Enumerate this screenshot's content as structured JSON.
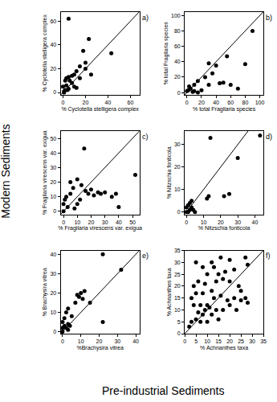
{
  "chart_data": {
    "type": "scatter",
    "x_label": "Pre-industrial Sediments",
    "y_label": "Modern Sediments",
    "marker": "circle",
    "color": "#000000",
    "panels": [
      {
        "label": "a)",
        "x_label": "% Cyclotella stelligera complex",
        "y_label": "% Cyclotella stelligera complex",
        "x": [
          5,
          23,
          18,
          43,
          20,
          15,
          12,
          10,
          8,
          5,
          3,
          2,
          6,
          8,
          10,
          12,
          5,
          2,
          1,
          0,
          3,
          15,
          25,
          1,
          4,
          20
        ],
        "y": [
          62,
          45,
          35,
          33,
          25,
          22,
          18,
          15,
          14,
          13,
          12,
          10,
          10,
          8,
          5,
          4,
          3,
          2,
          1,
          5,
          6,
          12,
          15,
          0,
          2,
          20
        ],
        "xlim": [
          -2,
          68
        ],
        "ylim": [
          -2,
          68
        ],
        "xticks": [
          0,
          20,
          40,
          60
        ],
        "yticks": [
          0,
          20,
          40,
          60
        ]
      },
      {
        "label": "b)",
        "x_label": "% total Fragilaria species",
        "y_label": "% total Fragilaria species",
        "x": [
          90,
          80,
          55,
          40,
          30,
          45,
          60,
          70,
          35,
          25,
          15,
          10,
          5,
          2,
          0,
          10,
          15,
          20,
          3,
          8,
          30,
          50
        ],
        "y": [
          80,
          37,
          47,
          35,
          38,
          12,
          10,
          5,
          25,
          20,
          15,
          10,
          5,
          3,
          2,
          2,
          0,
          3,
          8,
          1,
          10,
          13
        ],
        "xlim": [
          -3,
          105
        ],
        "ylim": [
          -3,
          105
        ],
        "xticks": [
          0,
          20,
          40,
          60,
          80,
          100
        ],
        "yticks": [
          0,
          20,
          40,
          60,
          80,
          100
        ]
      },
      {
        "label": "c)",
        "x_label": "% Fragilaria virescens var. exigua",
        "y_label": "% Fragilaria virescens var. exigua",
        "x": [
          15,
          52,
          10,
          5,
          13,
          7,
          20,
          25,
          30,
          18,
          22,
          35,
          5,
          2,
          1,
          0,
          3,
          8,
          0,
          40,
          10,
          12,
          16,
          27,
          38
        ],
        "y": [
          43,
          25,
          22,
          20,
          18,
          16,
          15,
          13,
          13,
          12,
          11,
          10,
          12,
          10,
          8,
          5,
          3,
          2,
          0,
          3,
          5,
          8,
          14,
          12,
          12
        ],
        "xlim": [
          -2,
          55
        ],
        "ylim": [
          -2,
          55
        ],
        "xticks": [
          0,
          10,
          20,
          30,
          40,
          50
        ],
        "yticks": [
          0,
          10,
          20,
          30,
          40,
          50
        ]
      },
      {
        "label": "d)",
        "x_label": "% Nitzschia fonticola",
        "y_label": "% Nitzschia fonticola",
        "x": [
          43,
          14,
          30,
          25,
          22,
          13,
          12,
          3,
          2,
          1,
          0,
          4,
          1,
          0,
          3,
          5,
          2
        ],
        "y": [
          34,
          33,
          24,
          8,
          7,
          7,
          6,
          5,
          4,
          3,
          2,
          1,
          0,
          0,
          2,
          0,
          1
        ],
        "xlim": [
          -1,
          45
        ],
        "ylim": [
          -1,
          36
        ],
        "xticks": [
          0,
          10,
          20,
          30,
          40
        ],
        "yticks": [
          0,
          10,
          20,
          30
        ]
      },
      {
        "label": "e)",
        "x_label": "%Brachysira vitrea",
        "y_label": "% Brachysira vitrea",
        "x": [
          22,
          32,
          12,
          10,
          8,
          9,
          11,
          7,
          15,
          3,
          2,
          5,
          1,
          0,
          3,
          22,
          1,
          0,
          2,
          3,
          0,
          4
        ],
        "y": [
          40,
          32,
          21,
          20,
          19,
          18,
          17,
          15,
          15,
          12,
          10,
          8,
          7,
          5,
          4,
          5,
          3,
          2,
          2,
          1,
          0,
          3
        ],
        "xlim": [
          -1,
          42
        ],
        "ylim": [
          -1,
          42
        ],
        "xticks": [
          0,
          10,
          20,
          30,
          40
        ],
        "yticks": [
          0,
          10,
          20,
          30,
          40
        ]
      },
      {
        "label": "f)",
        "x_label": "% Achnanthes taxa",
        "y_label": "% Achnanthes taxa",
        "x": [
          5,
          8,
          12,
          16,
          20,
          27,
          28,
          22,
          10,
          15,
          18,
          6,
          9,
          14,
          17,
          20,
          24,
          12,
          8,
          5,
          3,
          13,
          16,
          19,
          22,
          25,
          28,
          27,
          4,
          7,
          10,
          11,
          14,
          17,
          20,
          6,
          8,
          9,
          12,
          3,
          5,
          7,
          10,
          15,
          25,
          23,
          2,
          4,
          13
        ],
        "y": [
          30,
          28,
          30,
          32,
          31,
          32,
          29,
          27,
          25,
          25,
          26,
          22,
          21,
          22,
          23,
          22,
          20,
          18,
          17,
          17,
          15,
          15,
          16,
          14,
          15,
          14,
          13,
          15,
          12,
          12,
          12,
          11,
          10,
          10,
          12,
          9,
          8,
          10,
          8,
          5,
          6,
          5,
          5,
          6,
          18,
          10,
          3,
          20,
          28
        ],
        "xlim": [
          0,
          35
        ],
        "ylim": [
          0,
          35
        ],
        "xticks": [
          0,
          5,
          10,
          15,
          20,
          25,
          30,
          35
        ],
        "yticks": [
          0,
          5,
          10,
          15,
          20,
          25,
          30,
          35
        ]
      }
    ]
  }
}
